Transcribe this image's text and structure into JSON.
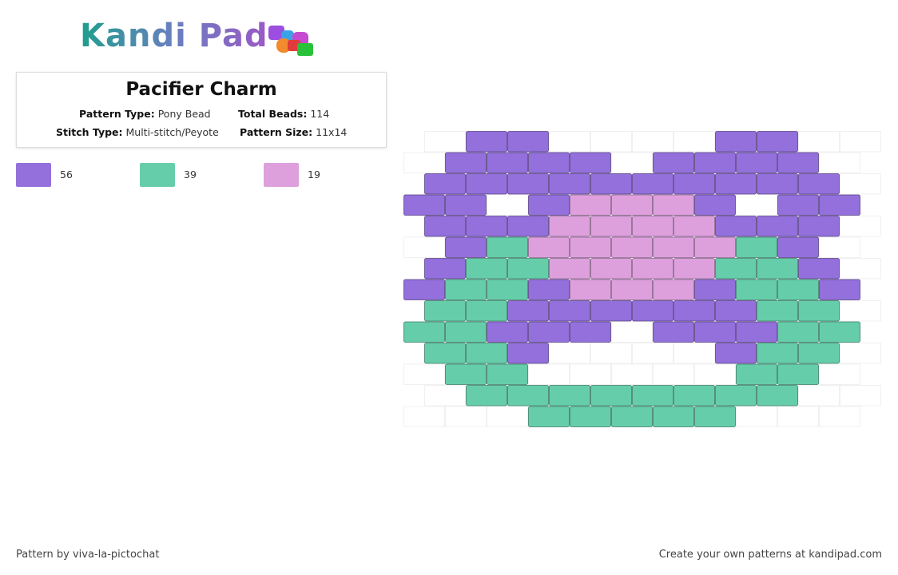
{
  "header": {
    "logo": "Kandi Pad"
  },
  "pattern": {
    "title": "Pacifier Charm",
    "type_label": "Pattern Type:",
    "type": "Pony Bead",
    "beads_label": "Total Beads:",
    "beads": 114,
    "stitch_label": "Stitch Type:",
    "stitch": "Multi-stitch/Peyote",
    "size_label": "Pattern Size:",
    "size": "11x14"
  },
  "palette": [
    {
      "code": "P",
      "color": "#9370db",
      "count": 56
    },
    {
      "code": "G",
      "color": "#66cdaa",
      "count": 39
    },
    {
      "code": "K",
      "color": "#dda0dd",
      "count": 19
    }
  ],
  "grid": [
    ".PP....PP..",
    ".PPPP.PPPP.",
    "PPPPPPPPPP.",
    "PP.PKKKP.PP",
    "PPPKKKKPPP.",
    ".PGKKKKKGP.",
    "PGGKKKKGGP.",
    "PGGPKKKPGGP",
    "GGPPPPPPGG.",
    "GGPPP.PPPGG",
    "GGP....PGG.",
    ".GG.....GG.",
    ".GGGGGGGG..",
    "...GGGGG..."
  ],
  "footer": {
    "left": "Pattern by viva-la-pictochat",
    "right": "Create your own patterns at kandipad.com"
  }
}
